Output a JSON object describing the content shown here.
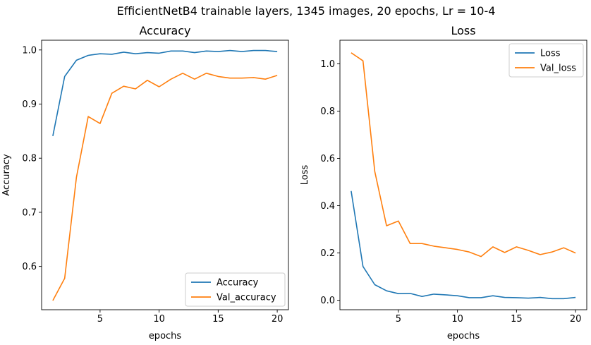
{
  "suptitle": "EfficientNetB4 trainable layers, 1345 images, 20 epochs, Lr = 10-4",
  "colors": {
    "blue": "#1f77b4",
    "orange": "#ff7f0e"
  },
  "chart_data": [
    {
      "type": "line",
      "title": "Accuracy",
      "xlabel": "epochs",
      "ylabel": "Accuracy",
      "xlim": [
        0.05,
        20.95
      ],
      "ylim": [
        0.52,
        1.018
      ],
      "xticks": [
        5,
        10,
        15,
        20
      ],
      "yticks": [
        0.6,
        0.7,
        0.8,
        0.9,
        1.0
      ],
      "ytick_labels": [
        "0.6",
        "0.7",
        "0.8",
        "0.9",
        "1.0"
      ],
      "grid": false,
      "legend_position": "lower right",
      "x": [
        1,
        2,
        3,
        4,
        5,
        6,
        7,
        8,
        9,
        10,
        11,
        12,
        13,
        14,
        15,
        16,
        17,
        18,
        19,
        20
      ],
      "series": [
        {
          "name": "Accuracy",
          "color": "#1f77b4",
          "values": [
            0.841,
            0.951,
            0.981,
            0.99,
            0.993,
            0.992,
            0.996,
            0.993,
            0.995,
            0.994,
            0.998,
            0.998,
            0.995,
            0.998,
            0.997,
            0.999,
            0.997,
            0.999,
            0.999,
            0.997
          ]
        },
        {
          "name": "Val_accuracy",
          "color": "#ff7f0e",
          "values": [
            0.537,
            0.578,
            0.765,
            0.877,
            0.864,
            0.92,
            0.933,
            0.928,
            0.944,
            0.932,
            0.946,
            0.957,
            0.946,
            0.957,
            0.951,
            0.948,
            0.948,
            0.949,
            0.946,
            0.953
          ]
        }
      ]
    },
    {
      "type": "line",
      "title": "Loss",
      "xlabel": "epochs",
      "ylabel": "Loss",
      "xlim": [
        0.05,
        20.95
      ],
      "ylim": [
        -0.04,
        1.1
      ],
      "xticks": [
        5,
        10,
        15,
        20
      ],
      "yticks": [
        0.0,
        0.2,
        0.4,
        0.6,
        0.8,
        1.0
      ],
      "ytick_labels": [
        "0.0",
        "0.2",
        "0.4",
        "0.6",
        "0.8",
        "1.0"
      ],
      "grid": false,
      "legend_position": "upper right",
      "x": [
        1,
        2,
        3,
        4,
        5,
        6,
        7,
        8,
        9,
        10,
        11,
        12,
        13,
        14,
        15,
        16,
        17,
        18,
        19,
        20
      ],
      "series": [
        {
          "name": "Loss",
          "color": "#1f77b4",
          "values": [
            0.462,
            0.143,
            0.066,
            0.04,
            0.028,
            0.029,
            0.016,
            0.026,
            0.023,
            0.019,
            0.011,
            0.011,
            0.019,
            0.012,
            0.011,
            0.009,
            0.012,
            0.007,
            0.007,
            0.012
          ]
        },
        {
          "name": "Val_loss",
          "color": "#ff7f0e",
          "values": [
            1.047,
            1.013,
            0.545,
            0.315,
            0.335,
            0.24,
            0.24,
            0.229,
            0.222,
            0.215,
            0.204,
            0.185,
            0.226,
            0.202,
            0.226,
            0.211,
            0.193,
            0.204,
            0.222,
            0.2
          ]
        }
      ]
    }
  ]
}
